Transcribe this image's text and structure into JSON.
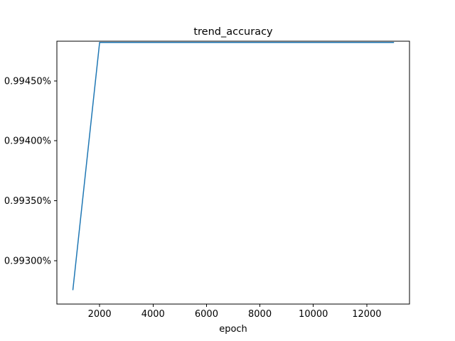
{
  "chart_data": {
    "type": "line",
    "title": "trend_accuracy",
    "xlabel": "epoch",
    "ylabel": "",
    "grid": false,
    "legend": "none",
    "xlim": [
      400,
      13600
    ],
    "ylim": [
      0.0099264,
      0.0099483
    ],
    "x_ticks": [
      2000,
      4000,
      6000,
      8000,
      10000,
      12000
    ],
    "x_tick_labels": [
      "2000",
      "4000",
      "6000",
      "8000",
      "10000",
      "12000"
    ],
    "y_ticks": [
      0.00993,
      0.009935,
      0.00994,
      0.009945
    ],
    "y_tick_labels": [
      "0.99300%",
      "0.99350%",
      "0.99400%",
      "0.99450%"
    ],
    "series": [
      {
        "color": "#1f77b4",
        "x": [
          1000,
          2000,
          3000,
          4000,
          5000,
          6000,
          7000,
          8000,
          9000,
          10000,
          11000,
          12000,
          13000
        ],
        "y": [
          0.0099276,
          0.0099482,
          0.0099482,
          0.0099482,
          0.0099482,
          0.0099482,
          0.0099482,
          0.0099482,
          0.0099482,
          0.0099482,
          0.0099482,
          0.0099482,
          0.0099482
        ]
      }
    ]
  }
}
